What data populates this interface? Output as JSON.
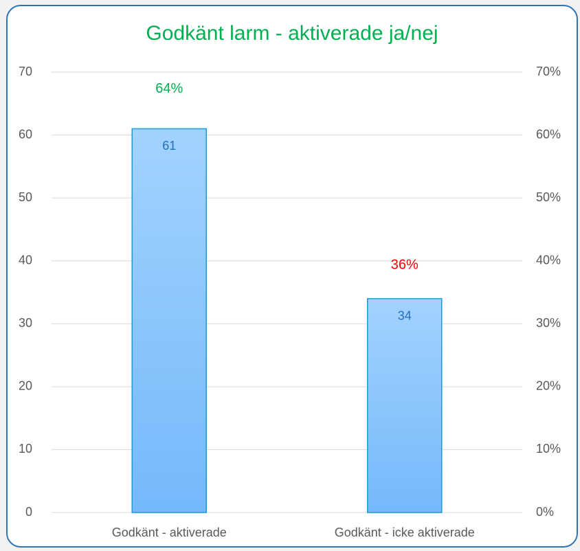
{
  "chart_data": {
    "type": "bar",
    "title": "Godkänt larm - aktiverade ja/nej",
    "categories": [
      "Godkänt - aktiverade",
      "Godkänt - icke aktiverade"
    ],
    "series": [
      {
        "type": "bar",
        "color": "#85c1fb",
        "values": [
          61,
          34
        ]
      },
      {
        "type": "line",
        "axis": "y2",
        "values": [
          64,
          36
        ],
        "value_labels": [
          "64%",
          "36%"
        ],
        "label_colors": [
          "#00b050",
          "#ff0000"
        ]
      }
    ],
    "ylim": [
      0,
      70
    ],
    "yticks": [
      0,
      10,
      20,
      30,
      40,
      50,
      60,
      70
    ],
    "y2lim": [
      0,
      70
    ],
    "y2ticks": [
      {
        "value": 0,
        "label": "0%"
      },
      {
        "value": 10,
        "label": "10%"
      },
      {
        "value": 20,
        "label": "20%"
      },
      {
        "value": 30,
        "label": "30%"
      },
      {
        "value": 40,
        "label": "40%"
      },
      {
        "value": 50,
        "label": "50%"
      },
      {
        "value": 60,
        "label": "60%"
      },
      {
        "value": 70,
        "label": "70%"
      }
    ],
    "grid": true
  }
}
